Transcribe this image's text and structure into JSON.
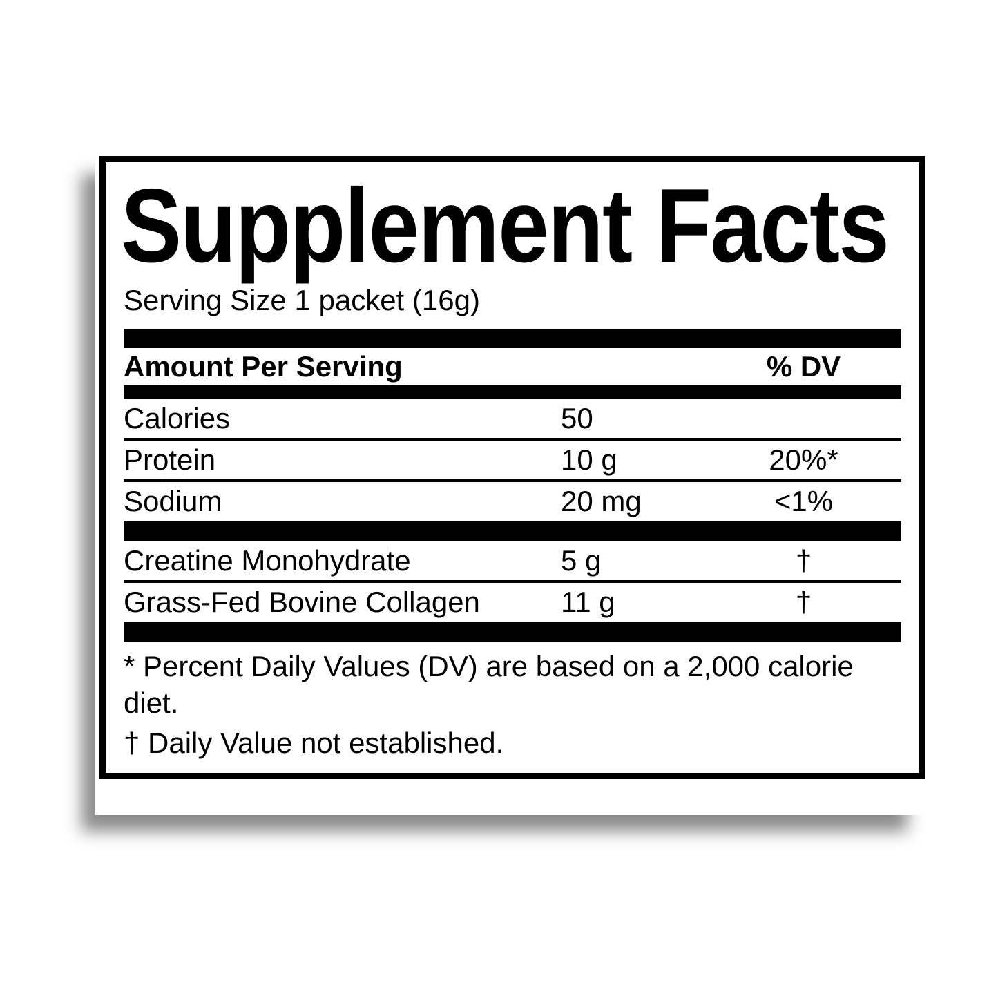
{
  "label": {
    "title": "Supplement Facts",
    "serving_size": "Serving Size 1 packet (16g)",
    "columns": {
      "amount_header": "Amount Per Serving",
      "dv_header": "% DV"
    },
    "nutrients": [
      {
        "name": "Calories",
        "amount": "50",
        "dv": ""
      },
      {
        "name": "Protein",
        "amount": "10 g",
        "dv": "20%*"
      },
      {
        "name": "Sodium",
        "amount": "20 mg",
        "dv": "<1%"
      }
    ],
    "ingredients": [
      {
        "name": "Creatine Monohydrate",
        "amount": "5 g",
        "dv": "†"
      },
      {
        "name": "Grass-Fed Bovine Collagen",
        "amount": "11 g",
        "dv": "†"
      }
    ],
    "footnotes": [
      "* Percent Daily Values (DV) are based on a 2,000 calorie diet.",
      "† Daily Value not established."
    ],
    "colors": {
      "ink": "#000000",
      "paper": "#ffffff"
    }
  }
}
